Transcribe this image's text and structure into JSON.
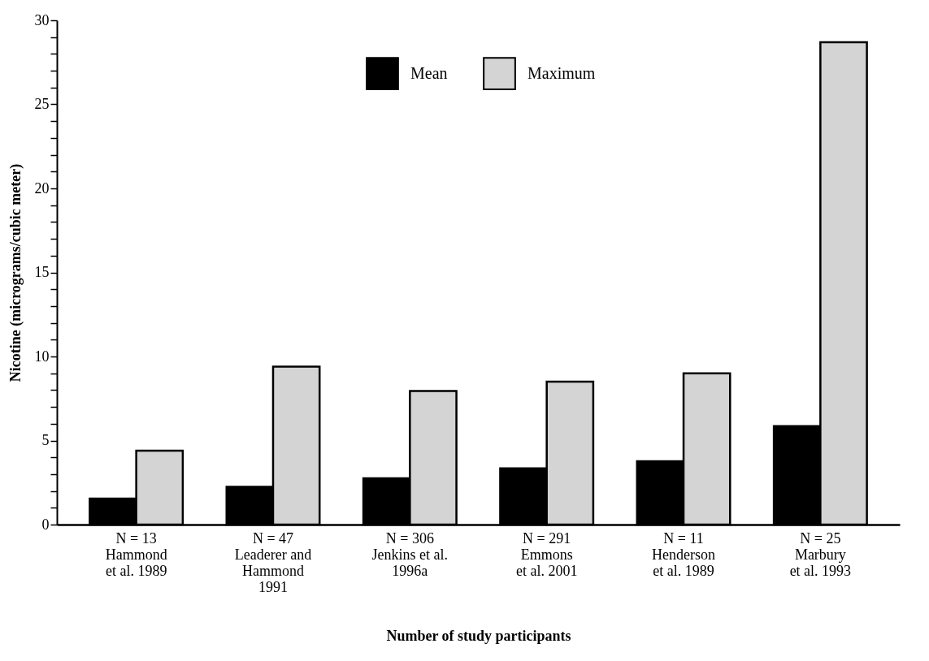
{
  "chart_data": {
    "type": "bar",
    "xlabel": "Number of study participants",
    "ylabel": "Nicotine (micrograms/cubic meter)",
    "categories": [
      "N = 13\n\nHammond\net al. 1989",
      "N = 47\n\nLeaderer and\nHammond\n1991",
      "N = 306\n\nJenkins et al.\n1996a",
      "N = 291\n\nEmmons\net al. 2001",
      "N = 11\n\nHenderson\net al. 1989",
      "N = 25\n\nMarbury\net al. 1993"
    ],
    "series": [
      {
        "name": "Mean",
        "color": "#000000",
        "values": [
          1.55,
          2.25,
          2.75,
          3.35,
          3.77,
          5.86
        ]
      },
      {
        "name": "Maximum",
        "color": "#d4d4d4",
        "values": [
          4.4,
          9.4,
          7.95,
          8.5,
          9.0,
          28.7
        ]
      }
    ],
    "ylim": [
      0,
      30
    ],
    "yticks": [
      0,
      {
        "value": 1,
        "label": null
      },
      {
        "value": 2,
        "label": null
      },
      {
        "value": 3,
        "label": null
      },
      {
        "value": 4,
        "label": null
      },
      5,
      {
        "value": 6,
        "label": null
      },
      {
        "value": 7,
        "label": null
      },
      {
        "value": 8,
        "label": null
      },
      {
        "value": 9,
        "label": null
      },
      10,
      {
        "value": 11,
        "label": null
      },
      {
        "value": 12,
        "label": null
      },
      {
        "value": 13,
        "label": null
      },
      {
        "value": 14,
        "label": null
      },
      15,
      {
        "value": 16,
        "label": null
      },
      {
        "value": 17,
        "label": null
      },
      {
        "value": 18,
        "label": null
      },
      {
        "value": 19,
        "label": null
      },
      20,
      {
        "value": 21,
        "label": null
      },
      {
        "value": 22,
        "label": null
      },
      {
        "value": 23,
        "label": null
      },
      {
        "value": 24,
        "label": null
      },
      25,
      {
        "value": 26,
        "label": null
      },
      {
        "value": 27,
        "label": null
      },
      {
        "value": 28,
        "label": null
      },
      {
        "value": 29,
        "label": null
      },
      30
    ],
    "grid": false,
    "legend": "top"
  }
}
